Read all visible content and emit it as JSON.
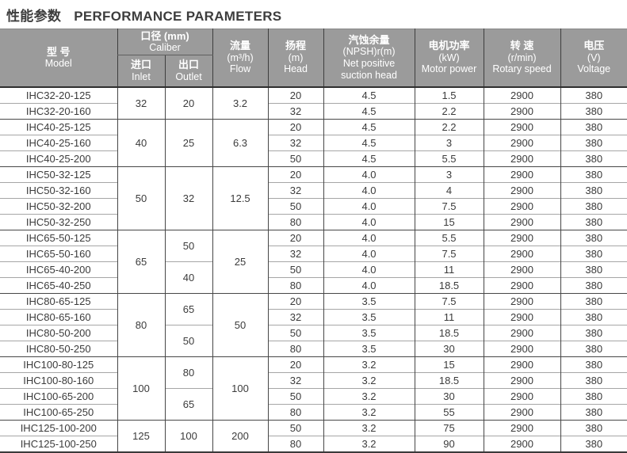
{
  "title": {
    "zh": "性能参数",
    "en": "PERFORMANCE PARAMETERS"
  },
  "colors": {
    "header_bg": "#9b9b9b",
    "header_text": "#ffffff",
    "body_text": "#3b3b3b",
    "grid_dark": "#474747",
    "grid_light": "#a6a6a6"
  },
  "table": {
    "headers": {
      "model": {
        "lines": [
          "型 号",
          "Model"
        ]
      },
      "caliber": {
        "lines": [
          "口径 (mm)",
          "Caliber"
        ]
      },
      "inlet": {
        "lines": [
          "进口",
          "Inlet"
        ]
      },
      "outlet": {
        "lines": [
          "出口",
          "Outlet"
        ]
      },
      "flow": {
        "lines": [
          "流量",
          "(m³/h)",
          "Flow"
        ]
      },
      "head": {
        "lines": [
          "扬程",
          "(m)",
          "Head"
        ]
      },
      "npsh": {
        "lines": [
          "汽蚀余量",
          "(NPSH)r(m)",
          "Net positive",
          "suction head"
        ]
      },
      "power": {
        "lines": [
          "电机功率",
          "(kW)",
          "Motor power"
        ]
      },
      "speed": {
        "lines": [
          "转 速",
          "(r/min)",
          "Rotary speed"
        ]
      },
      "voltage": {
        "lines": [
          "电压",
          "(V)",
          "Voltage"
        ]
      }
    },
    "rows": [
      {
        "model": "IHC32-20-125",
        "inlet": "32",
        "inlet_span": 2,
        "outlet": "20",
        "outlet_span": 2,
        "flow": "3.2",
        "flow_span": 2,
        "head": "20",
        "npsh": "4.5",
        "power": "1.5",
        "speed": "2900",
        "voltage": "380",
        "group_start": true
      },
      {
        "model": "IHC32-20-160",
        "head": "32",
        "npsh": "4.5",
        "power": "2.2",
        "speed": "2900",
        "voltage": "380"
      },
      {
        "model": "IHC40-25-125",
        "inlet": "40",
        "inlet_span": 3,
        "outlet": "25",
        "outlet_span": 3,
        "flow": "6.3",
        "flow_span": 3,
        "head": "20",
        "npsh": "4.5",
        "power": "2.2",
        "speed": "2900",
        "voltage": "380",
        "group_start": true
      },
      {
        "model": "IHC40-25-160",
        "head": "32",
        "npsh": "4.5",
        "power": "3",
        "speed": "2900",
        "voltage": "380"
      },
      {
        "model": "IHC40-25-200",
        "head": "50",
        "npsh": "4.5",
        "power": "5.5",
        "speed": "2900",
        "voltage": "380"
      },
      {
        "model": "IHC50-32-125",
        "inlet": "50",
        "inlet_span": 4,
        "outlet": "32",
        "outlet_span": 4,
        "flow": "12.5",
        "flow_span": 4,
        "head": "20",
        "npsh": "4.0",
        "power": "3",
        "speed": "2900",
        "voltage": "380",
        "group_start": true
      },
      {
        "model": "IHC50-32-160",
        "head": "32",
        "npsh": "4.0",
        "power": "4",
        "speed": "2900",
        "voltage": "380"
      },
      {
        "model": "IHC50-32-200",
        "head": "50",
        "npsh": "4.0",
        "power": "7.5",
        "speed": "2900",
        "voltage": "380"
      },
      {
        "model": "IHC50-32-250",
        "head": "80",
        "npsh": "4.0",
        "power": "15",
        "speed": "2900",
        "voltage": "380"
      },
      {
        "model": "IHC65-50-125",
        "inlet": "65",
        "inlet_span": 4,
        "outlet": "50",
        "outlet_span": 2,
        "flow": "25",
        "flow_span": 4,
        "head": "20",
        "npsh": "4.0",
        "power": "5.5",
        "speed": "2900",
        "voltage": "380",
        "group_start": true
      },
      {
        "model": "IHC65-50-160",
        "head": "32",
        "npsh": "4.0",
        "power": "7.5",
        "speed": "2900",
        "voltage": "380"
      },
      {
        "model": "IHC65-40-200",
        "outlet": "40",
        "outlet_span": 2,
        "head": "50",
        "npsh": "4.0",
        "power": "11",
        "speed": "2900",
        "voltage": "380"
      },
      {
        "model": "IHC65-40-250",
        "head": "80",
        "npsh": "4.0",
        "power": "18.5",
        "speed": "2900",
        "voltage": "380"
      },
      {
        "model": "IHC80-65-125",
        "inlet": "80",
        "inlet_span": 4,
        "outlet": "65",
        "outlet_span": 2,
        "flow": "50",
        "flow_span": 4,
        "head": "20",
        "npsh": "3.5",
        "power": "7.5",
        "speed": "2900",
        "voltage": "380",
        "group_start": true
      },
      {
        "model": "IHC80-65-160",
        "head": "32",
        "npsh": "3.5",
        "power": "11",
        "speed": "2900",
        "voltage": "380"
      },
      {
        "model": "IHC80-50-200",
        "outlet": "50",
        "outlet_span": 2,
        "head": "50",
        "npsh": "3.5",
        "power": "18.5",
        "speed": "2900",
        "voltage": "380"
      },
      {
        "model": "IHC80-50-250",
        "head": "80",
        "npsh": "3.5",
        "power": "30",
        "speed": "2900",
        "voltage": "380"
      },
      {
        "model": "IHC100-80-125",
        "inlet": "100",
        "inlet_span": 4,
        "outlet": "80",
        "outlet_span": 2,
        "flow": "100",
        "flow_span": 4,
        "head": "20",
        "npsh": "3.2",
        "power": "15",
        "speed": "2900",
        "voltage": "380",
        "group_start": true
      },
      {
        "model": "IHC100-80-160",
        "head": "32",
        "npsh": "3.2",
        "power": "18.5",
        "speed": "2900",
        "voltage": "380"
      },
      {
        "model": "IHC100-65-200",
        "outlet": "65",
        "outlet_span": 2,
        "head": "50",
        "npsh": "3.2",
        "power": "30",
        "speed": "2900",
        "voltage": "380"
      },
      {
        "model": "IHC100-65-250",
        "head": "80",
        "npsh": "3.2",
        "power": "55",
        "speed": "2900",
        "voltage": "380"
      },
      {
        "model": "IHC125-100-200",
        "inlet": "125",
        "inlet_span": 2,
        "outlet": "100",
        "outlet_span": 2,
        "flow": "200",
        "flow_span": 2,
        "head": "50",
        "npsh": "3.2",
        "power": "75",
        "speed": "2900",
        "voltage": "380",
        "group_start": true
      },
      {
        "model": "IHC125-100-250",
        "head": "80",
        "npsh": "3.2",
        "power": "90",
        "speed": "2900",
        "voltage": "380"
      }
    ]
  }
}
